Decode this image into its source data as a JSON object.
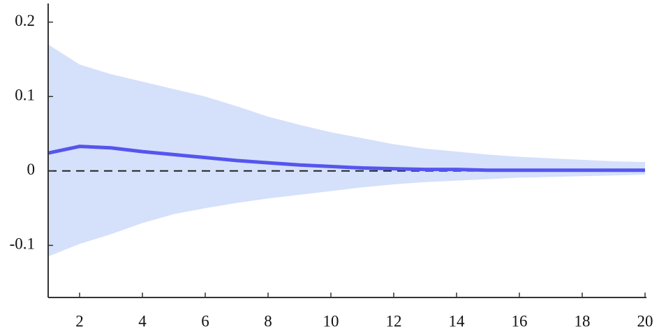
{
  "chart_data": {
    "type": "line",
    "x": [
      1,
      2,
      3,
      4,
      5,
      6,
      7,
      8,
      9,
      10,
      11,
      12,
      13,
      14,
      15,
      16,
      17,
      18,
      19,
      20
    ],
    "series": [
      {
        "color": "#5555ee",
        "band_color": "#d5e0fb",
        "values": [
          0.024,
          0.033,
          0.031,
          0.026,
          0.022,
          0.018,
          0.014,
          0.011,
          0.008,
          0.006,
          0.004,
          0.003,
          0.002,
          0.002,
          0.001,
          0.001,
          0.001,
          0.001,
          0.001,
          0.001
        ],
        "upper": [
          0.17,
          0.143,
          0.13,
          0.12,
          0.11,
          0.1,
          0.087,
          0.073,
          0.062,
          0.052,
          0.044,
          0.036,
          0.03,
          0.026,
          0.022,
          0.019,
          0.017,
          0.015,
          0.013,
          0.012
        ],
        "lower": [
          -0.115,
          -0.098,
          -0.085,
          -0.07,
          -0.058,
          -0.05,
          -0.043,
          -0.037,
          -0.032,
          -0.027,
          -0.022,
          -0.018,
          -0.015,
          -0.013,
          -0.011,
          -0.009,
          -0.008,
          -0.007,
          -0.006,
          -0.005
        ]
      }
    ],
    "reference_line": 0,
    "xlim": [
      1,
      20
    ],
    "xticks": [
      2,
      4,
      6,
      8,
      10,
      12,
      14,
      16,
      18,
      20
    ],
    "ylim": [
      -0.17,
      0.225
    ],
    "yticks": [
      -0.1,
      0,
      0.1,
      0.2
    ]
  }
}
